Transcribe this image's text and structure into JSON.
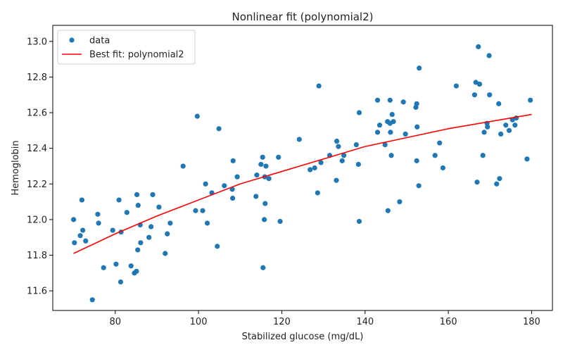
{
  "chart_data": {
    "type": "scatter",
    "title": "Nonlinear fit (polynomial2)",
    "xlabel": "Stabilized glucose (mg/dL)",
    "ylabel": "Hemoglobin",
    "xlim": [
      65,
      185
    ],
    "ylim": [
      11.49,
      13.09
    ],
    "x_ticks": [
      80,
      100,
      120,
      140,
      160,
      180
    ],
    "y_ticks": [
      11.6,
      11.8,
      12.0,
      12.2,
      12.4,
      12.6,
      12.8,
      13.0
    ],
    "grid": false,
    "legend_position": "top-left",
    "colors": {
      "scatter": "#1f77b4",
      "fit": "#ff0000"
    },
    "series": [
      {
        "name": "data",
        "kind": "scatter",
        "points": [
          [
            70.0,
            12.0
          ],
          [
            70.2,
            11.87
          ],
          [
            71.6,
            11.91
          ],
          [
            72.0,
            12.11
          ],
          [
            72.2,
            11.94
          ],
          [
            72.9,
            11.88
          ],
          [
            74.5,
            11.55
          ],
          [
            75.8,
            12.03
          ],
          [
            76.0,
            11.98
          ],
          [
            77.2,
            11.73
          ],
          [
            79.4,
            11.94
          ],
          [
            80.2,
            11.75
          ],
          [
            80.9,
            12.11
          ],
          [
            81.3,
            11.65
          ],
          [
            81.4,
            11.93
          ],
          [
            82.8,
            12.04
          ],
          [
            83.8,
            11.74
          ],
          [
            84.6,
            11.7
          ],
          [
            85.1,
            11.71
          ],
          [
            85.2,
            12.14
          ],
          [
            85.4,
            11.83
          ],
          [
            85.5,
            12.08
          ],
          [
            86.0,
            11.97
          ],
          [
            86.1,
            11.87
          ],
          [
            88.1,
            11.9
          ],
          [
            88.6,
            11.96
          ],
          [
            89.0,
            12.14
          ],
          [
            90.5,
            12.07
          ],
          [
            92.0,
            11.81
          ],
          [
            92.5,
            11.92
          ],
          [
            93.2,
            11.98
          ],
          [
            96.3,
            12.3
          ],
          [
            99.3,
            12.05
          ],
          [
            99.7,
            12.58
          ],
          [
            101.0,
            12.05
          ],
          [
            101.7,
            12.2
          ],
          [
            102.1,
            11.98
          ],
          [
            103.2,
            12.15
          ],
          [
            104.5,
            11.85
          ],
          [
            104.9,
            12.51
          ],
          [
            106.2,
            12.19
          ],
          [
            108.1,
            12.17
          ],
          [
            108.2,
            12.12
          ],
          [
            108.3,
            12.33
          ],
          [
            109.3,
            12.24
          ],
          [
            113.8,
            12.13
          ],
          [
            114.0,
            12.25
          ],
          [
            115.0,
            12.31
          ],
          [
            115.4,
            12.35
          ],
          [
            115.5,
            11.73
          ],
          [
            115.8,
            12.0
          ],
          [
            115.9,
            12.24
          ],
          [
            116.0,
            12.09
          ],
          [
            116.2,
            12.3
          ],
          [
            116.9,
            12.23
          ],
          [
            119.2,
            12.35
          ],
          [
            119.6,
            11.99
          ],
          [
            124.2,
            12.45
          ],
          [
            126.8,
            12.28
          ],
          [
            127.9,
            12.29
          ],
          [
            128.6,
            12.15
          ],
          [
            128.9,
            12.75
          ],
          [
            129.4,
            12.32
          ],
          [
            131.5,
            12.36
          ],
          [
            133.1,
            12.22
          ],
          [
            133.2,
            12.44
          ],
          [
            133.6,
            12.41
          ],
          [
            134.5,
            12.33
          ],
          [
            134.9,
            12.36
          ],
          [
            137.9,
            12.42
          ],
          [
            138.4,
            12.31
          ],
          [
            138.6,
            11.99
          ],
          [
            138.6,
            12.6
          ],
          [
            143.0,
            12.49
          ],
          [
            143.0,
            12.67
          ],
          [
            143.5,
            12.53
          ],
          [
            144.8,
            12.42
          ],
          [
            145.4,
            12.55
          ],
          [
            145.5,
            12.05
          ],
          [
            146.0,
            12.54
          ],
          [
            146.0,
            12.67
          ],
          [
            146.1,
            12.49
          ],
          [
            146.3,
            12.36
          ],
          [
            146.5,
            12.59
          ],
          [
            146.8,
            12.55
          ],
          [
            148.3,
            12.1
          ],
          [
            149.2,
            12.66
          ],
          [
            149.7,
            12.48
          ],
          [
            152.2,
            12.63
          ],
          [
            152.4,
            12.65
          ],
          [
            152.4,
            12.33
          ],
          [
            152.5,
            12.52
          ],
          [
            152.9,
            12.19
          ],
          [
            153.0,
            12.85
          ],
          [
            156.8,
            12.36
          ],
          [
            157.9,
            12.43
          ],
          [
            158.7,
            12.29
          ],
          [
            161.9,
            12.75
          ],
          [
            166.3,
            12.7
          ],
          [
            166.6,
            12.77
          ],
          [
            166.9,
            12.21
          ],
          [
            167.2,
            12.97
          ],
          [
            167.5,
            12.76
          ],
          [
            168.3,
            12.36
          ],
          [
            168.6,
            12.49
          ],
          [
            169.3,
            12.54
          ],
          [
            169.4,
            12.52
          ],
          [
            169.8,
            12.92
          ],
          [
            169.9,
            12.7
          ],
          [
            171.6,
            12.2
          ],
          [
            172.1,
            12.65
          ],
          [
            172.3,
            12.23
          ],
          [
            172.6,
            12.48
          ],
          [
            173.8,
            12.53
          ],
          [
            174.6,
            12.5
          ],
          [
            175.4,
            12.56
          ],
          [
            176.0,
            12.53
          ],
          [
            176.3,
            12.57
          ],
          [
            178.9,
            12.34
          ],
          [
            179.7,
            12.67
          ]
        ]
      },
      {
        "name": "Best fit: polynomial2",
        "kind": "line",
        "points": [
          [
            70,
            11.81
          ],
          [
            80,
            11.92
          ],
          [
            90,
            12.02
          ],
          [
            100,
            12.11
          ],
          [
            110,
            12.2
          ],
          [
            120,
            12.27
          ],
          [
            130,
            12.34
          ],
          [
            140,
            12.41
          ],
          [
            150,
            12.46
          ],
          [
            160,
            12.51
          ],
          [
            170,
            12.55
          ],
          [
            180,
            12.59
          ]
        ]
      }
    ]
  }
}
